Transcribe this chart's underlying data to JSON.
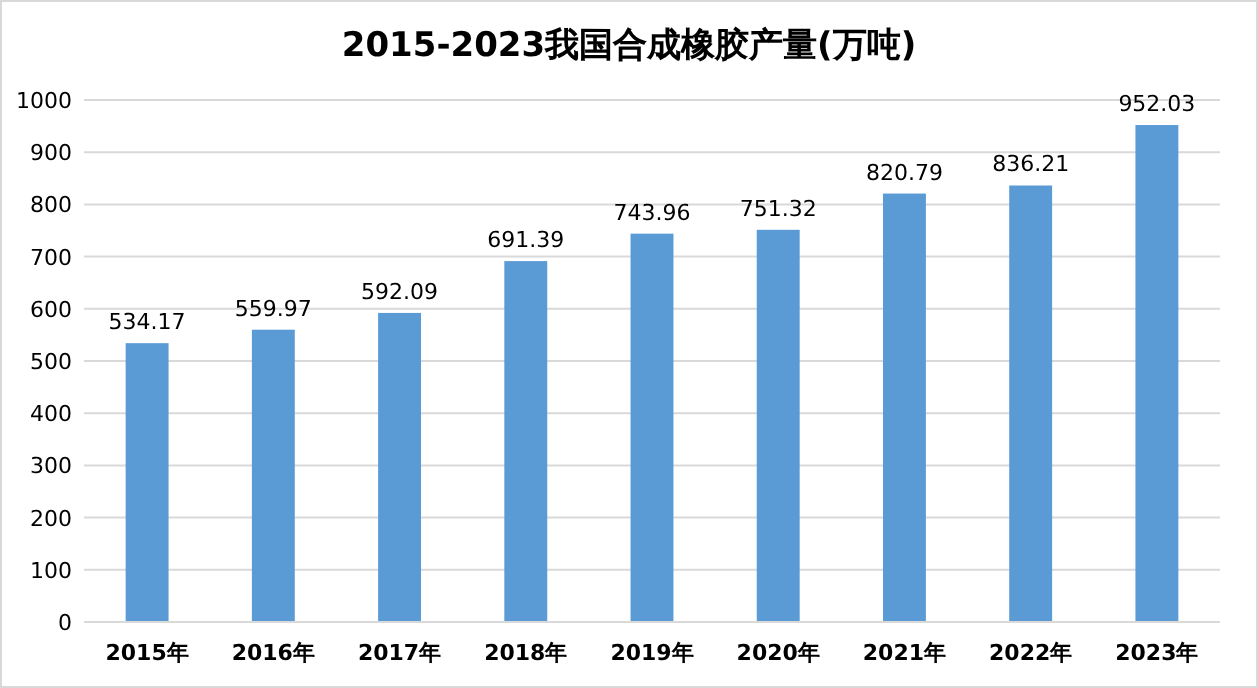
{
  "chart_data": {
    "type": "bar",
    "title": "2015-2023我国合成橡胶产量(万吨)",
    "categories": [
      "2015年",
      "2016年",
      "2017年",
      "2018年",
      "2019年",
      "2020年",
      "2021年",
      "2022年",
      "2023年"
    ],
    "values": [
      534.17,
      559.97,
      592.09,
      691.39,
      743.96,
      751.32,
      820.79,
      836.21,
      952.03
    ],
    "color": "#5b9bd5",
    "ylim": [
      0,
      1000
    ],
    "yticks": [
      0,
      100,
      200,
      300,
      400,
      500,
      600,
      700,
      800,
      900,
      1000
    ],
    "grid": "y",
    "data_labels": true
  }
}
